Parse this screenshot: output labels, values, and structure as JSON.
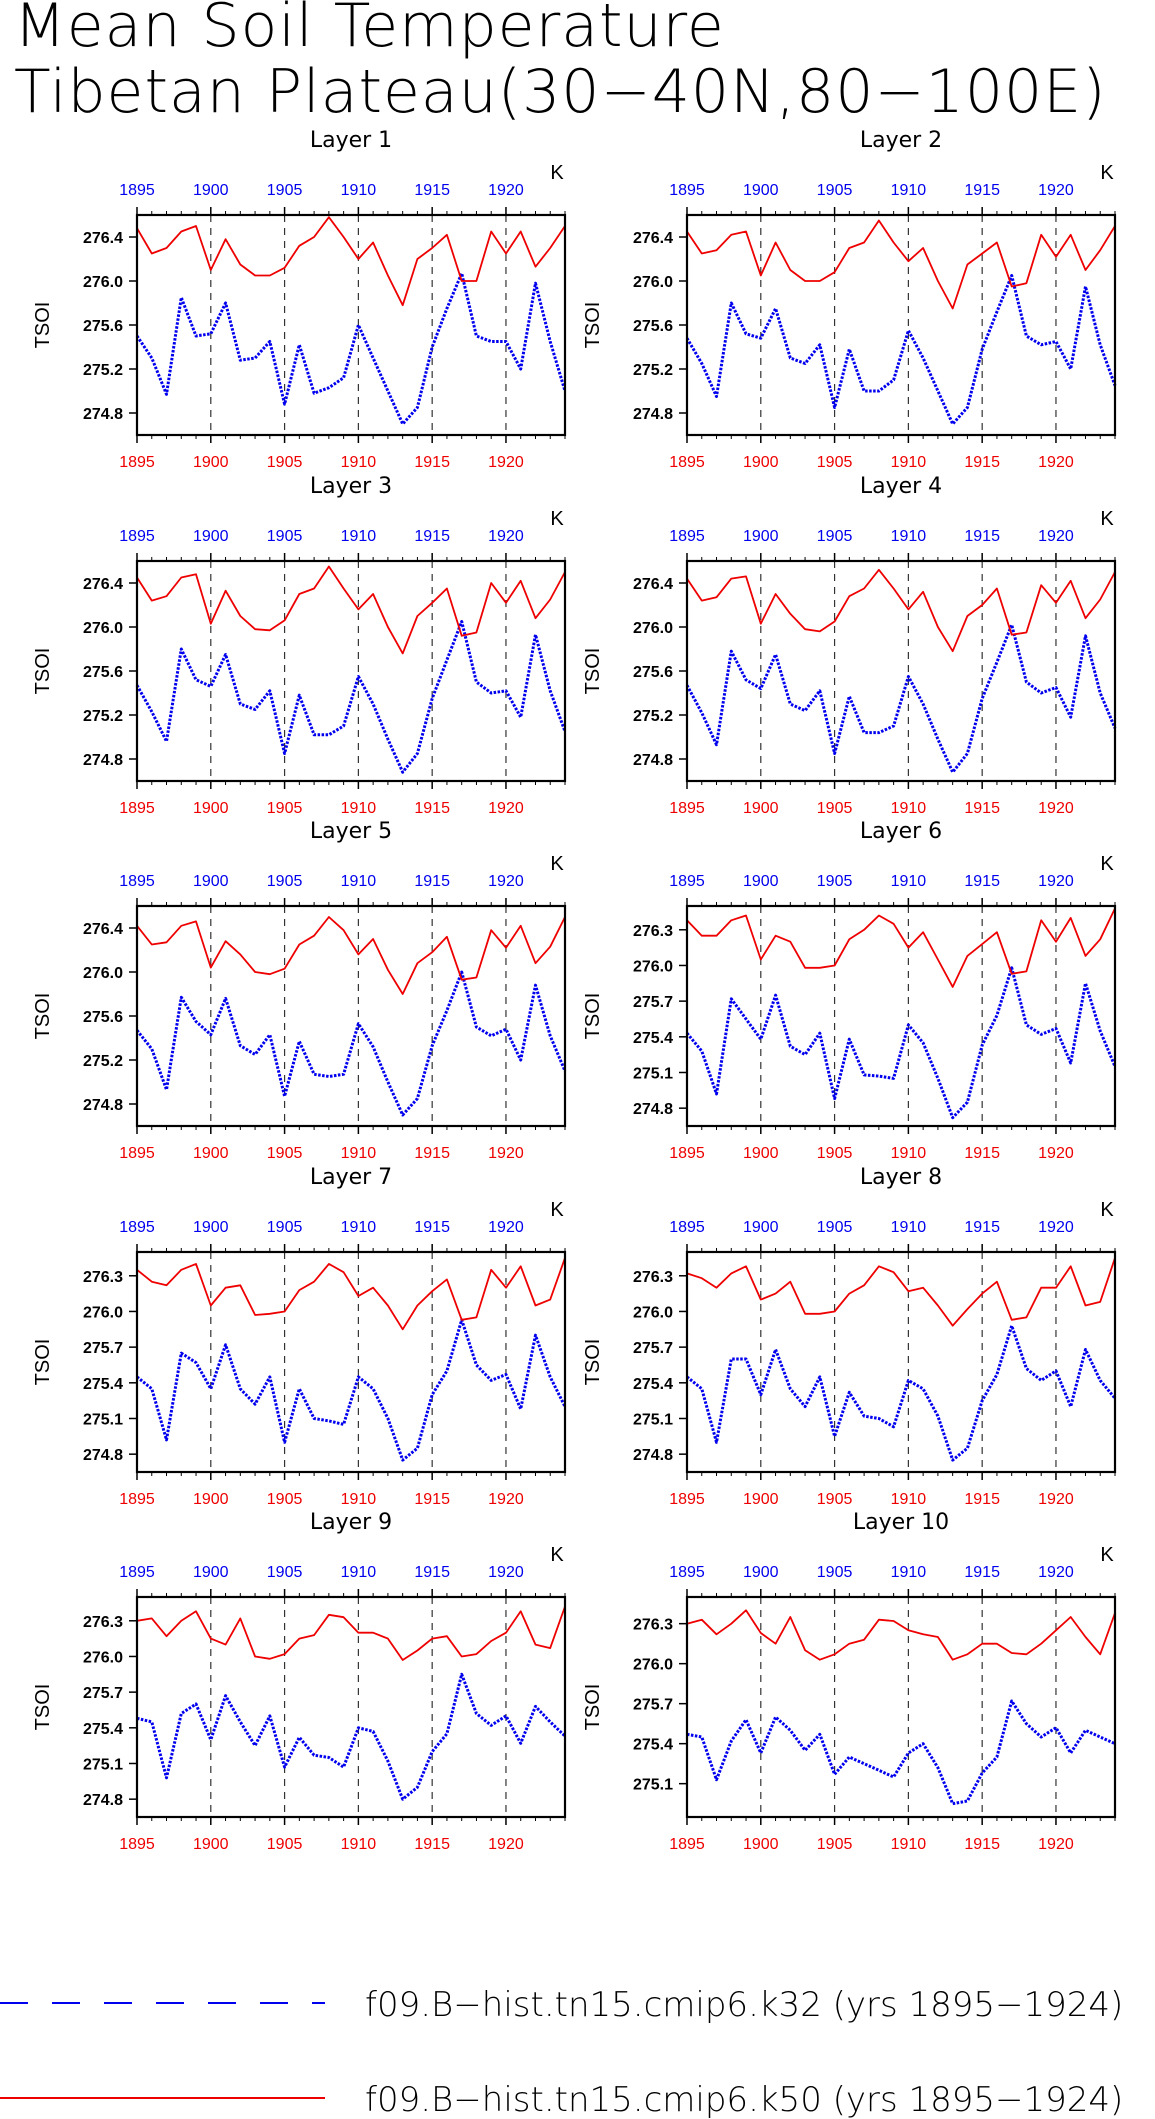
{
  "figure": {
    "title_line1": "Mean Soil Temperature",
    "title_line2": "Tibetan Plateau(30−40N,80−100E)",
    "unit": "K",
    "ylabel": "TSOI",
    "xticks": [
      1895,
      1900,
      1905,
      1910,
      1915,
      1920
    ],
    "xrange": [
      1895,
      1924
    ]
  },
  "legend": [
    {
      "label": "f09.B−hist.tn15.cmip6.k32 (yrs 1895−1924)",
      "color": "#0000ee",
      "style": "dashed"
    },
    {
      "label": "f09.B−hist.tn15.cmip6.k50 (yrs 1895−1924)",
      "color": "#ee0000",
      "style": "solid"
    }
  ],
  "chart_data": [
    {
      "type": "line",
      "title": "Layer 1",
      "ylabel": "TSOI",
      "xlim": [
        1895,
        1924
      ],
      "ylim": [
        274.6,
        276.6
      ],
      "yticks": [
        274.8,
        275.2,
        275.6,
        276.0,
        276.4
      ],
      "x_start": 1895,
      "series": [
        {
          "name": "f09.B−hist.tn15.cmip6.k32",
          "color": "#0000ee",
          "values": [
            275.5,
            275.3,
            274.97,
            275.85,
            275.5,
            275.52,
            275.8,
            275.28,
            275.3,
            275.45,
            274.88,
            275.42,
            274.98,
            275.03,
            275.12,
            275.6,
            275.3,
            275.0,
            274.7,
            274.85,
            275.4,
            275.75,
            276.07,
            275.5,
            275.45,
            275.45,
            275.2,
            275.98,
            275.45,
            275.0
          ]
        },
        {
          "name": "f09.B−hist.tn15.cmip6.k50",
          "color": "#ee0000",
          "values": [
            276.48,
            276.25,
            276.3,
            276.45,
            276.5,
            276.1,
            276.38,
            276.15,
            276.05,
            276.05,
            276.12,
            276.32,
            276.4,
            276.58,
            276.4,
            276.2,
            276.35,
            276.05,
            275.78,
            276.2,
            276.3,
            276.42,
            276.0,
            276.0,
            276.45,
            276.25,
            276.45,
            276.13,
            276.3,
            276.5
          ]
        }
      ]
    },
    {
      "type": "line",
      "title": "Layer 2",
      "ylabel": "TSOI",
      "xlim": [
        1895,
        1924
      ],
      "ylim": [
        274.6,
        276.6
      ],
      "yticks": [
        274.8,
        275.2,
        275.6,
        276.0,
        276.4
      ],
      "x_start": 1895,
      "series": [
        {
          "name": "f09.B−hist.tn15.cmip6.k32",
          "color": "#0000ee",
          "values": [
            275.48,
            275.25,
            274.95,
            275.8,
            275.52,
            275.48,
            275.75,
            275.3,
            275.25,
            275.42,
            274.85,
            275.38,
            275.0,
            275.0,
            275.1,
            275.55,
            275.3,
            275.0,
            274.7,
            274.85,
            275.38,
            275.72,
            276.05,
            275.5,
            275.42,
            275.45,
            275.2,
            275.95,
            275.42,
            275.05
          ]
        },
        {
          "name": "f09.B−hist.tn15.cmip6.k50",
          "color": "#ee0000",
          "values": [
            276.45,
            276.25,
            276.28,
            276.42,
            276.45,
            276.05,
            276.35,
            276.1,
            276.0,
            276.0,
            276.08,
            276.3,
            276.35,
            276.55,
            276.35,
            276.18,
            276.3,
            276.0,
            275.75,
            276.15,
            276.25,
            276.35,
            275.95,
            275.98,
            276.42,
            276.22,
            276.42,
            276.1,
            276.28,
            276.5
          ]
        }
      ]
    },
    {
      "type": "line",
      "title": "Layer 3",
      "ylabel": "TSOI",
      "xlim": [
        1895,
        1924
      ],
      "ylim": [
        274.6,
        276.6
      ],
      "yticks": [
        274.8,
        275.2,
        275.6,
        276.0,
        276.4
      ],
      "x_start": 1895,
      "series": [
        {
          "name": "f09.B−hist.tn15.cmip6.k32",
          "color": "#0000ee",
          "values": [
            275.47,
            275.23,
            274.96,
            275.8,
            275.52,
            275.46,
            275.75,
            275.3,
            275.25,
            275.42,
            274.85,
            275.38,
            275.02,
            275.02,
            275.1,
            275.55,
            275.3,
            274.98,
            274.68,
            274.85,
            275.35,
            275.7,
            276.05,
            275.5,
            275.4,
            275.42,
            275.18,
            275.93,
            275.42,
            275.05
          ]
        },
        {
          "name": "f09.B−hist.tn15.cmip6.k50",
          "color": "#ee0000",
          "values": [
            276.45,
            276.24,
            276.28,
            276.45,
            276.48,
            276.03,
            276.33,
            276.1,
            275.98,
            275.97,
            276.06,
            276.3,
            276.35,
            276.55,
            276.35,
            276.16,
            276.3,
            276.0,
            275.76,
            276.1,
            276.22,
            276.35,
            275.92,
            275.95,
            276.4,
            276.22,
            276.42,
            276.08,
            276.25,
            276.5
          ]
        }
      ]
    },
    {
      "type": "line",
      "title": "Layer 4",
      "ylabel": "TSOI",
      "xlim": [
        1895,
        1924
      ],
      "ylim": [
        274.6,
        276.6
      ],
      "yticks": [
        274.8,
        275.2,
        275.6,
        276.0,
        276.4
      ],
      "x_start": 1895,
      "series": [
        {
          "name": "f09.B−hist.tn15.cmip6.k32",
          "color": "#0000ee",
          "values": [
            275.47,
            275.22,
            274.93,
            275.78,
            275.52,
            275.44,
            275.75,
            275.3,
            275.24,
            275.42,
            274.85,
            275.37,
            275.04,
            275.04,
            275.1,
            275.55,
            275.3,
            274.98,
            274.68,
            274.85,
            275.35,
            275.68,
            276.02,
            275.5,
            275.4,
            275.45,
            275.18,
            275.92,
            275.4,
            275.08
          ]
        },
        {
          "name": "f09.B−hist.tn15.cmip6.k50",
          "color": "#ee0000",
          "values": [
            276.44,
            276.24,
            276.27,
            276.44,
            276.46,
            276.03,
            276.3,
            276.12,
            275.98,
            275.96,
            276.05,
            276.28,
            276.35,
            276.52,
            276.35,
            276.16,
            276.32,
            276.0,
            275.78,
            276.1,
            276.2,
            276.35,
            275.93,
            275.95,
            276.38,
            276.22,
            276.42,
            276.08,
            276.25,
            276.5
          ]
        }
      ]
    },
    {
      "type": "line",
      "title": "Layer 5",
      "ylabel": "TSOI",
      "xlim": [
        1895,
        1924
      ],
      "ylim": [
        274.6,
        276.6
      ],
      "yticks": [
        274.8,
        275.2,
        275.6,
        276.0,
        276.4
      ],
      "x_start": 1895,
      "series": [
        {
          "name": "f09.B−hist.tn15.cmip6.k32",
          "color": "#0000ee",
          "values": [
            275.47,
            275.3,
            274.93,
            275.77,
            275.55,
            275.43,
            275.76,
            275.33,
            275.25,
            275.43,
            274.87,
            275.37,
            275.07,
            275.05,
            275.07,
            275.53,
            275.32,
            275.0,
            274.7,
            274.85,
            275.33,
            275.65,
            276.0,
            275.5,
            275.42,
            275.48,
            275.2,
            275.88,
            275.42,
            275.1
          ]
        },
        {
          "name": "f09.B−hist.tn15.cmip6.k50",
          "color": "#ee0000",
          "values": [
            276.42,
            276.25,
            276.27,
            276.42,
            276.46,
            276.04,
            276.28,
            276.16,
            276.0,
            275.98,
            276.03,
            276.25,
            276.33,
            276.5,
            276.38,
            276.16,
            276.3,
            276.02,
            275.8,
            276.08,
            276.18,
            276.32,
            275.93,
            275.95,
            276.38,
            276.22,
            276.42,
            276.08,
            276.23,
            276.5
          ]
        }
      ]
    },
    {
      "type": "line",
      "title": "Layer 6",
      "ylabel": "TSOI",
      "xlim": [
        1895,
        1924
      ],
      "ylim": [
        274.65,
        276.5
      ],
      "yticks": [
        274.8,
        275.1,
        275.4,
        275.7,
        276.0,
        276.3
      ],
      "x_start": 1895,
      "series": [
        {
          "name": "f09.B−hist.tn15.cmip6.k32",
          "color": "#0000ee",
          "values": [
            275.43,
            275.28,
            274.92,
            275.72,
            275.55,
            275.38,
            275.75,
            275.32,
            275.25,
            275.43,
            274.88,
            275.38,
            275.08,
            275.07,
            275.05,
            275.5,
            275.35,
            275.05,
            274.72,
            274.85,
            275.33,
            275.58,
            275.98,
            275.5,
            275.42,
            275.47,
            275.18,
            275.85,
            275.45,
            275.15
          ]
        },
        {
          "name": "f09.B−hist.tn15.cmip6.k50",
          "color": "#ee0000",
          "values": [
            276.38,
            276.25,
            276.25,
            276.38,
            276.42,
            276.05,
            276.25,
            276.2,
            275.98,
            275.98,
            276.0,
            276.22,
            276.3,
            276.42,
            276.35,
            276.15,
            276.28,
            276.05,
            275.82,
            276.08,
            276.18,
            276.28,
            275.93,
            275.95,
            276.38,
            276.2,
            276.4,
            276.08,
            276.22,
            276.48
          ]
        }
      ]
    },
    {
      "type": "line",
      "title": "Layer 7",
      "ylabel": "TSOI",
      "xlim": [
        1895,
        1924
      ],
      "ylim": [
        274.65,
        276.5
      ],
      "yticks": [
        274.8,
        275.1,
        275.4,
        275.7,
        276.0,
        276.3
      ],
      "x_start": 1895,
      "series": [
        {
          "name": "f09.B−hist.tn15.cmip6.k32",
          "color": "#0000ee",
          "values": [
            275.45,
            275.35,
            274.92,
            275.65,
            275.57,
            275.35,
            275.72,
            275.35,
            275.22,
            275.45,
            274.9,
            275.35,
            275.1,
            275.08,
            275.05,
            275.45,
            275.35,
            275.1,
            274.75,
            274.85,
            275.3,
            275.5,
            275.93,
            275.55,
            275.42,
            275.47,
            275.18,
            275.8,
            275.45,
            275.2
          ]
        },
        {
          "name": "f09.B−hist.tn15.cmip6.k50",
          "color": "#ee0000",
          "values": [
            276.35,
            276.25,
            276.22,
            276.35,
            276.4,
            276.05,
            276.2,
            276.22,
            275.97,
            275.98,
            276.0,
            276.18,
            276.25,
            276.4,
            276.33,
            276.13,
            276.2,
            276.05,
            275.85,
            276.05,
            276.17,
            276.27,
            275.93,
            275.95,
            276.35,
            276.2,
            276.38,
            276.05,
            276.1,
            276.45
          ]
        }
      ]
    },
    {
      "type": "line",
      "title": "Layer 8",
      "ylabel": "TSOI",
      "xlim": [
        1895,
        1924
      ],
      "ylim": [
        274.65,
        276.5
      ],
      "yticks": [
        274.8,
        275.1,
        275.4,
        275.7,
        276.0,
        276.3
      ],
      "x_start": 1895,
      "series": [
        {
          "name": "f09.B−hist.tn15.cmip6.k32",
          "color": "#0000ee",
          "values": [
            275.45,
            275.35,
            274.9,
            275.6,
            275.6,
            275.3,
            275.68,
            275.35,
            275.2,
            275.45,
            274.95,
            275.32,
            275.12,
            275.1,
            275.03,
            275.42,
            275.35,
            275.12,
            274.75,
            274.85,
            275.25,
            275.47,
            275.88,
            275.52,
            275.42,
            275.5,
            275.2,
            275.68,
            275.42,
            275.27
          ]
        },
        {
          "name": "f09.B−hist.tn15.cmip6.k50",
          "color": "#ee0000",
          "values": [
            276.32,
            276.28,
            276.2,
            276.32,
            276.38,
            276.1,
            276.15,
            276.25,
            275.98,
            275.98,
            276.0,
            276.15,
            276.22,
            276.38,
            276.33,
            276.17,
            276.2,
            276.05,
            275.88,
            276.02,
            276.15,
            276.25,
            275.93,
            275.95,
            276.2,
            276.2,
            276.38,
            276.05,
            276.08,
            276.45
          ]
        }
      ]
    },
    {
      "type": "line",
      "title": "Layer 9",
      "ylabel": "TSOI",
      "xlim": [
        1895,
        1924
      ],
      "ylim": [
        274.65,
        276.5
      ],
      "yticks": [
        274.8,
        275.1,
        275.4,
        275.7,
        276.0,
        276.3
      ],
      "x_start": 1895,
      "series": [
        {
          "name": "f09.B−hist.tn15.cmip6.k32",
          "color": "#0000ee",
          "values": [
            275.48,
            275.45,
            274.98,
            275.52,
            275.6,
            275.3,
            275.67,
            275.45,
            275.25,
            275.5,
            275.07,
            275.32,
            275.17,
            275.15,
            275.07,
            275.4,
            275.37,
            275.12,
            274.8,
            274.9,
            275.2,
            275.35,
            275.85,
            275.52,
            275.42,
            275.5,
            275.27,
            275.58,
            275.45,
            275.33
          ]
        },
        {
          "name": "f09.B−hist.tn15.cmip6.k50",
          "color": "#ee0000",
          "values": [
            276.3,
            276.32,
            276.17,
            276.3,
            276.38,
            276.15,
            276.1,
            276.32,
            276.0,
            275.98,
            276.02,
            276.15,
            276.18,
            276.35,
            276.33,
            276.2,
            276.2,
            276.15,
            275.97,
            276.05,
            276.15,
            276.17,
            276.0,
            276.02,
            276.13,
            276.2,
            276.38,
            276.1,
            276.07,
            276.42
          ]
        }
      ]
    },
    {
      "type": "line",
      "title": "Layer 10",
      "ylabel": "TSOI",
      "xlim": [
        1895,
        1924
      ],
      "ylim": [
        274.85,
        276.5
      ],
      "yticks": [
        275.1,
        275.4,
        275.7,
        276.0,
        276.3
      ],
      "x_start": 1895,
      "series": [
        {
          "name": "f09.B−hist.tn15.cmip6.k32",
          "color": "#0000ee",
          "values": [
            275.47,
            275.45,
            275.13,
            275.42,
            275.58,
            275.33,
            275.6,
            275.5,
            275.35,
            275.47,
            275.17,
            275.3,
            275.25,
            275.2,
            275.15,
            275.33,
            275.4,
            275.22,
            274.95,
            274.97,
            275.18,
            275.3,
            275.72,
            275.55,
            275.45,
            275.52,
            275.33,
            275.5,
            275.45,
            275.4
          ]
        },
        {
          "name": "f09.B−hist.tn15.cmip6.k50",
          "color": "#ee0000",
          "values": [
            276.3,
            276.33,
            276.22,
            276.3,
            276.4,
            276.23,
            276.15,
            276.35,
            276.1,
            276.03,
            276.07,
            276.15,
            276.18,
            276.33,
            276.32,
            276.25,
            276.22,
            276.2,
            276.03,
            276.07,
            276.15,
            276.15,
            276.08,
            276.07,
            276.15,
            276.25,
            276.35,
            276.2,
            276.07,
            276.38
          ]
        }
      ]
    }
  ]
}
